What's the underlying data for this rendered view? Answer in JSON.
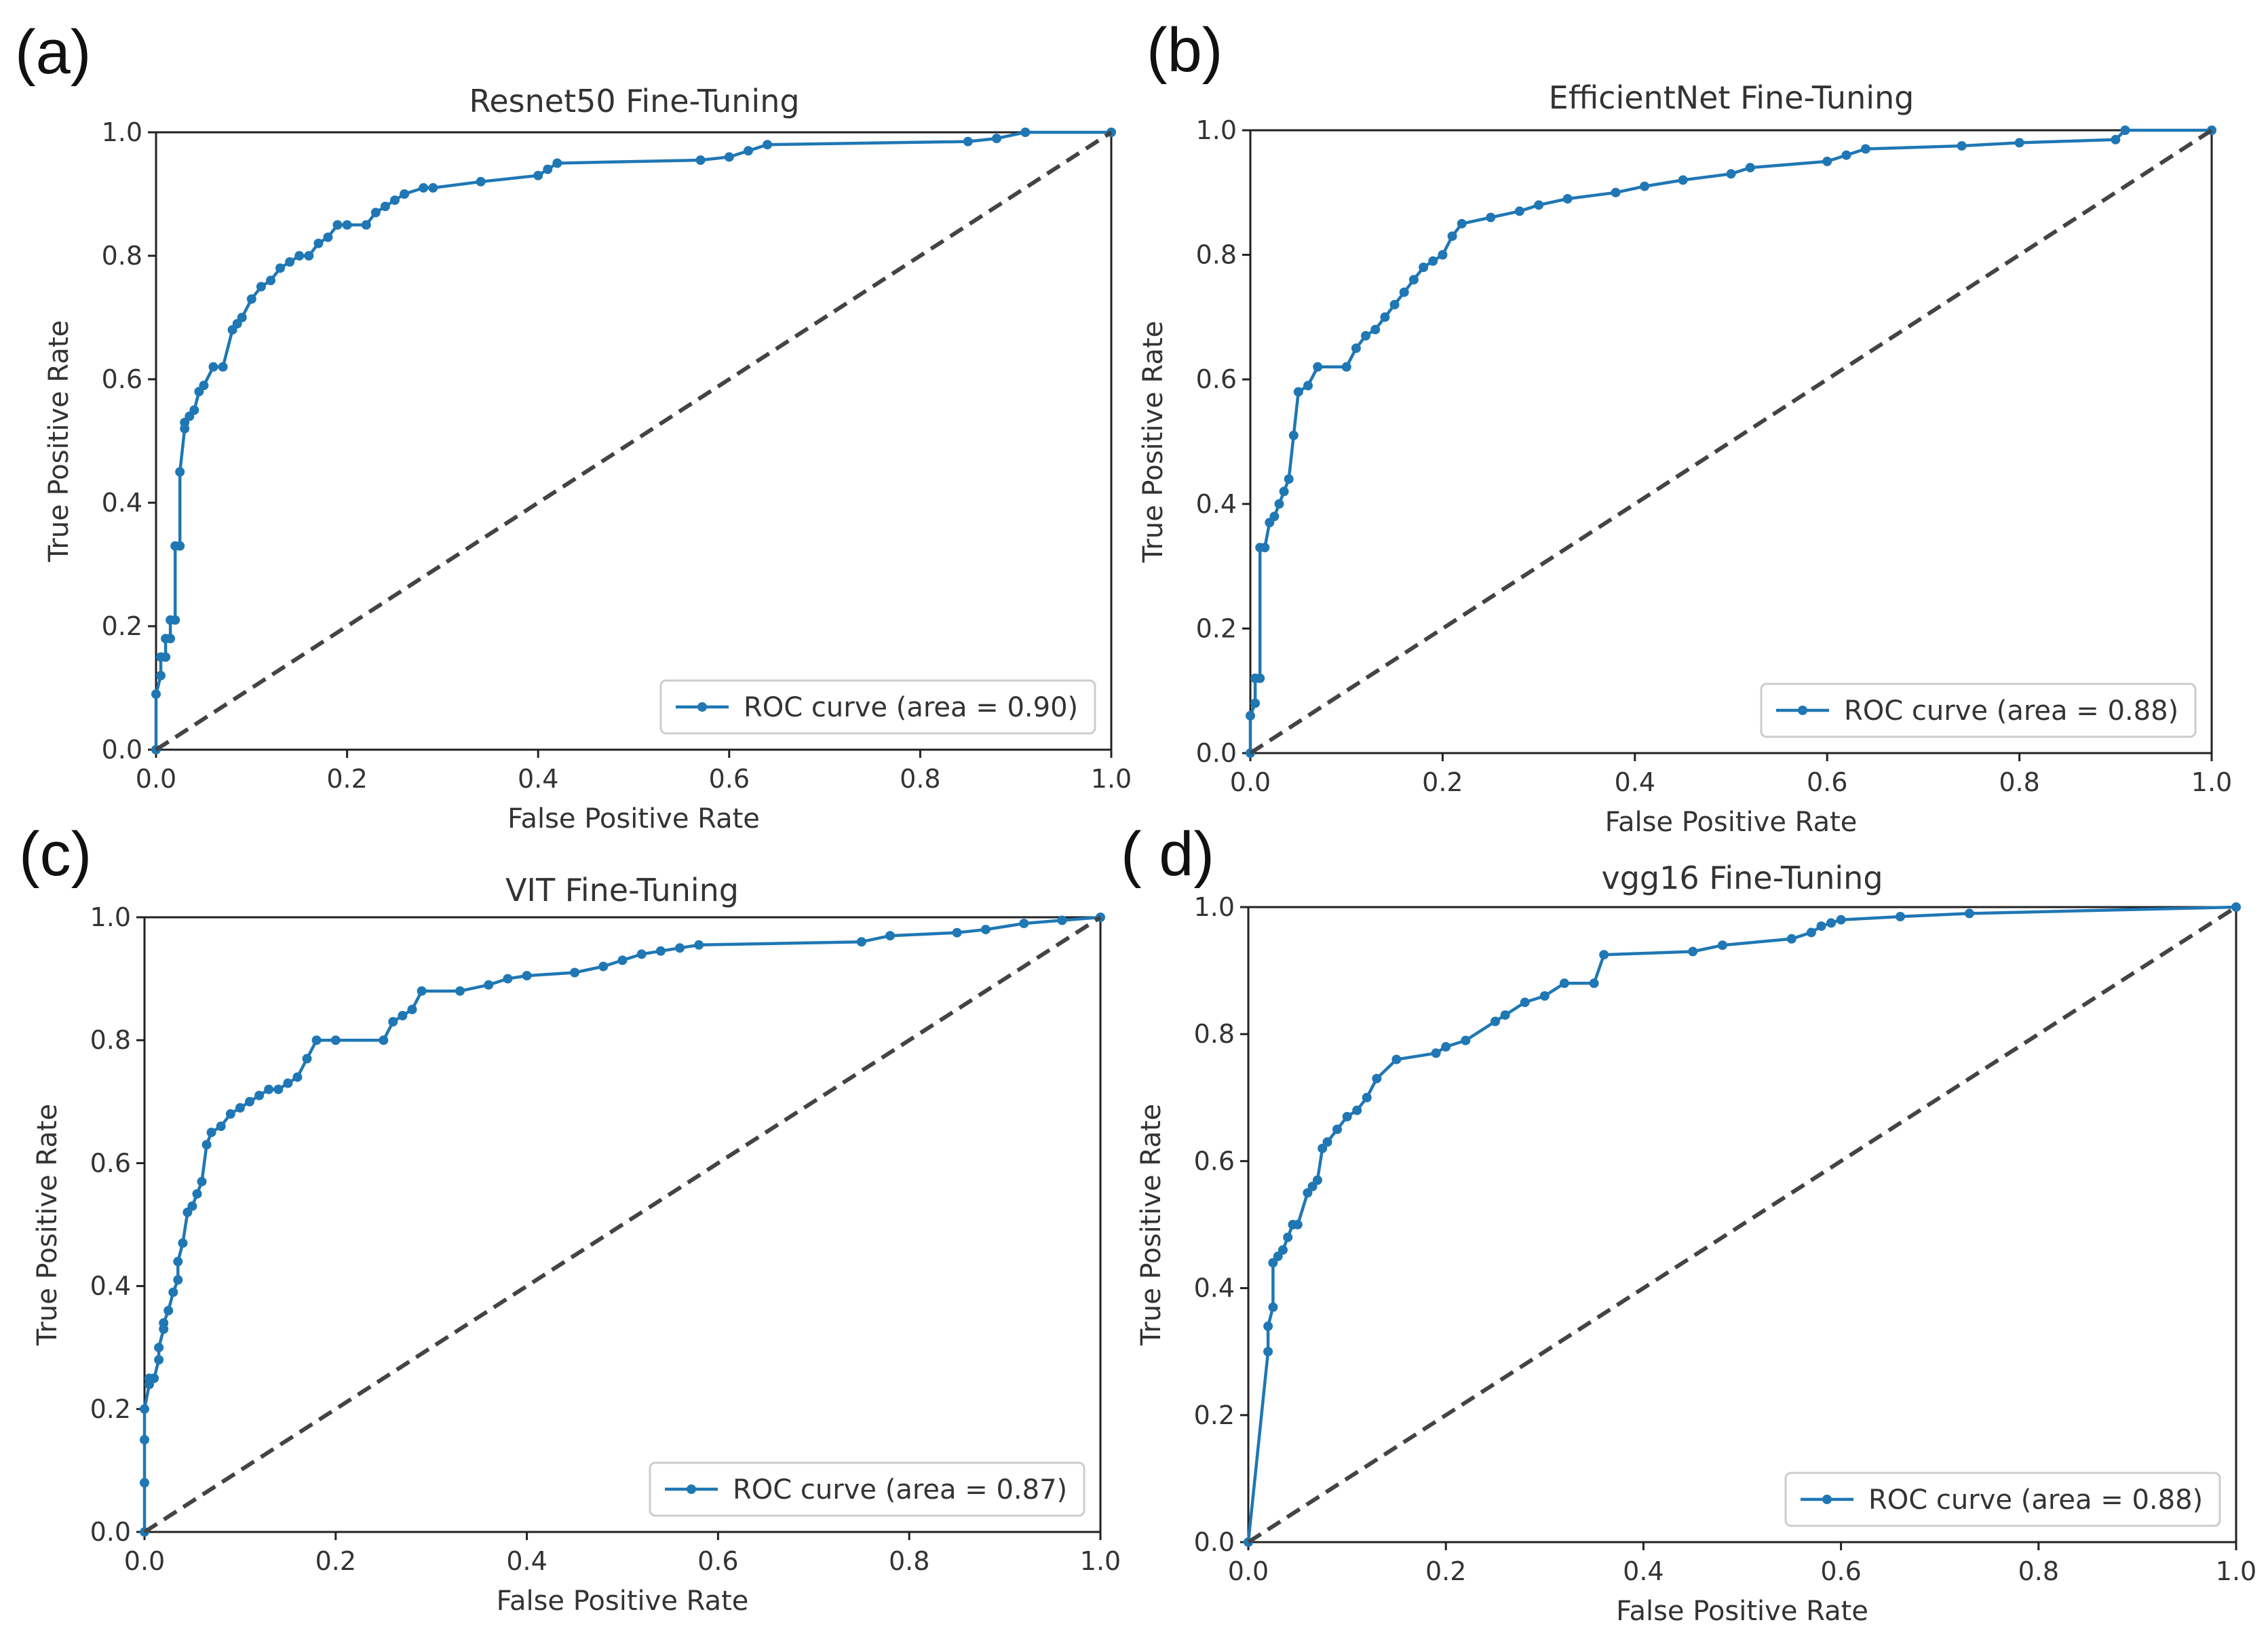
{
  "chart_data": [
    {
      "type": "line",
      "panel_label": "(a)",
      "title": "Resnet50 Fine-Tuning",
      "xlabel": "False Positive Rate",
      "ylabel": "True Positive Rate",
      "xlim": [
        0.0,
        1.0
      ],
      "ylim": [
        0.0,
        1.0
      ],
      "xticks": [
        "0.0",
        "0.2",
        "0.4",
        "0.6",
        "0.8",
        "1.0"
      ],
      "yticks": [
        "0.0",
        "0.2",
        "0.4",
        "0.6",
        "0.8",
        "1.0"
      ],
      "legend_position": "lower-right",
      "grid": false,
      "series": [
        {
          "name": "ROC curve (area = 0.90)",
          "color": "#1f77b4",
          "marker": "dot",
          "x": [
            0,
            0,
            0.005,
            0.005,
            0.01,
            0.01,
            0.015,
            0.015,
            0.02,
            0.02,
            0.025,
            0.025,
            0.03,
            0.03,
            0.035,
            0.04,
            0.045,
            0.05,
            0.06,
            0.07,
            0.08,
            0.085,
            0.09,
            0.1,
            0.11,
            0.12,
            0.13,
            0.14,
            0.15,
            0.16,
            0.17,
            0.18,
            0.19,
            0.2,
            0.22,
            0.23,
            0.24,
            0.25,
            0.26,
            0.28,
            0.29,
            0.34,
            0.4,
            0.41,
            0.42,
            0.57,
            0.6,
            0.62,
            0.64,
            0.85,
            0.88,
            0.91,
            1.0
          ],
          "y": [
            0,
            0.09,
            0.12,
            0.15,
            0.15,
            0.18,
            0.18,
            0.21,
            0.21,
            0.33,
            0.33,
            0.45,
            0.52,
            0.53,
            0.54,
            0.55,
            0.58,
            0.59,
            0.62,
            0.62,
            0.68,
            0.69,
            0.7,
            0.73,
            0.75,
            0.76,
            0.78,
            0.79,
            0.8,
            0.8,
            0.82,
            0.83,
            0.85,
            0.85,
            0.85,
            0.87,
            0.88,
            0.89,
            0.9,
            0.91,
            0.91,
            0.92,
            0.93,
            0.94,
            0.95,
            0.955,
            0.96,
            0.97,
            0.98,
            0.985,
            0.99,
            1.0,
            1.0
          ]
        },
        {
          "name": "chance",
          "color": "#444444",
          "style": "dashed",
          "x": [
            0,
            1
          ],
          "y": [
            0,
            1
          ]
        }
      ],
      "legend_entry": "ROC curve (area = 0.90)"
    },
    {
      "type": "line",
      "panel_label": "(b)",
      "title": "EfficientNet Fine-Tuning",
      "xlabel": "False Positive Rate",
      "ylabel": "True Positive Rate",
      "xlim": [
        0.0,
        1.0
      ],
      "ylim": [
        0.0,
        1.0
      ],
      "xticks": [
        "0.0",
        "0.2",
        "0.4",
        "0.6",
        "0.8",
        "1.0"
      ],
      "yticks": [
        "0.0",
        "0.2",
        "0.4",
        "0.6",
        "0.8",
        "1.0"
      ],
      "legend_position": "lower-right",
      "grid": false,
      "series": [
        {
          "name": "ROC curve (area = 0.88)",
          "color": "#1f77b4",
          "marker": "dot",
          "x": [
            0,
            0,
            0.005,
            0.005,
            0.01,
            0.01,
            0.015,
            0.02,
            0.025,
            0.03,
            0.035,
            0.04,
            0.045,
            0.05,
            0.06,
            0.07,
            0.1,
            0.11,
            0.12,
            0.13,
            0.14,
            0.15,
            0.16,
            0.17,
            0.18,
            0.19,
            0.2,
            0.21,
            0.22,
            0.25,
            0.28,
            0.3,
            0.33,
            0.38,
            0.41,
            0.45,
            0.5,
            0.52,
            0.6,
            0.62,
            0.64,
            0.74,
            0.8,
            0.9,
            0.91,
            1.0
          ],
          "y": [
            0,
            0.06,
            0.08,
            0.12,
            0.12,
            0.33,
            0.33,
            0.37,
            0.38,
            0.4,
            0.42,
            0.44,
            0.51,
            0.58,
            0.59,
            0.62,
            0.62,
            0.65,
            0.67,
            0.68,
            0.7,
            0.72,
            0.74,
            0.76,
            0.78,
            0.79,
            0.8,
            0.83,
            0.85,
            0.86,
            0.87,
            0.88,
            0.89,
            0.9,
            0.91,
            0.92,
            0.93,
            0.94,
            0.95,
            0.96,
            0.97,
            0.975,
            0.98,
            0.985,
            1.0,
            1.0
          ]
        },
        {
          "name": "chance",
          "color": "#444444",
          "style": "dashed",
          "x": [
            0,
            1
          ],
          "y": [
            0,
            1
          ]
        }
      ],
      "legend_entry": "ROC curve (area = 0.88)"
    },
    {
      "type": "line",
      "panel_label": "(c)",
      "title": "VIT Fine-Tuning",
      "xlabel": "False Positive Rate",
      "ylabel": "True Positive Rate",
      "xlim": [
        0.0,
        1.0
      ],
      "ylim": [
        0.0,
        1.0
      ],
      "xticks": [
        "0.0",
        "0.2",
        "0.4",
        "0.6",
        "0.8",
        "1.0"
      ],
      "yticks": [
        "0.0",
        "0.2",
        "0.4",
        "0.6",
        "0.8",
        "1.0"
      ],
      "legend_position": "lower-right",
      "grid": false,
      "series": [
        {
          "name": "ROC curve (area = 0.87)",
          "color": "#1f77b4",
          "marker": "dot",
          "x": [
            0,
            0,
            0,
            0,
            0.005,
            0.005,
            0.01,
            0.015,
            0.015,
            0.02,
            0.02,
            0.025,
            0.03,
            0.035,
            0.035,
            0.04,
            0.045,
            0.05,
            0.055,
            0.06,
            0.065,
            0.07,
            0.08,
            0.09,
            0.1,
            0.11,
            0.12,
            0.13,
            0.14,
            0.15,
            0.16,
            0.17,
            0.18,
            0.2,
            0.25,
            0.26,
            0.27,
            0.28,
            0.29,
            0.33,
            0.36,
            0.38,
            0.4,
            0.45,
            0.48,
            0.5,
            0.52,
            0.54,
            0.56,
            0.58,
            0.75,
            0.78,
            0.85,
            0.88,
            0.92,
            0.96,
            1.0
          ],
          "y": [
            0,
            0.08,
            0.15,
            0.2,
            0.24,
            0.25,
            0.25,
            0.28,
            0.3,
            0.33,
            0.34,
            0.36,
            0.39,
            0.41,
            0.44,
            0.47,
            0.52,
            0.53,
            0.55,
            0.57,
            0.63,
            0.65,
            0.66,
            0.68,
            0.69,
            0.7,
            0.71,
            0.72,
            0.72,
            0.73,
            0.74,
            0.77,
            0.8,
            0.8,
            0.8,
            0.83,
            0.84,
            0.85,
            0.88,
            0.88,
            0.89,
            0.9,
            0.905,
            0.91,
            0.92,
            0.93,
            0.94,
            0.945,
            0.95,
            0.955,
            0.96,
            0.97,
            0.975,
            0.98,
            0.99,
            0.995,
            1.0
          ]
        },
        {
          "name": "chance",
          "color": "#444444",
          "style": "dashed",
          "x": [
            0,
            1
          ],
          "y": [
            0,
            1
          ]
        }
      ],
      "legend_entry": "ROC curve (area = 0.87)"
    },
    {
      "type": "line",
      "panel_label": "( d)",
      "title": "vgg16 Fine-Tuning",
      "xlabel": "False Positive Rate",
      "ylabel": "True Positive Rate",
      "xlim": [
        0.0,
        1.0
      ],
      "ylim": [
        0.0,
        1.0
      ],
      "xticks": [
        "0.0",
        "0.2",
        "0.4",
        "0.6",
        "0.8",
        "1.0"
      ],
      "yticks": [
        "0.0",
        "0.2",
        "0.4",
        "0.6",
        "0.8",
        "1.0"
      ],
      "legend_position": "lower-right",
      "grid": false,
      "series": [
        {
          "name": "ROC curve (area = 0.88)",
          "color": "#1f77b4",
          "marker": "dot",
          "x": [
            0,
            0.02,
            0.02,
            0.025,
            0.025,
            0.03,
            0.035,
            0.04,
            0.045,
            0.05,
            0.06,
            0.065,
            0.07,
            0.075,
            0.08,
            0.09,
            0.1,
            0.11,
            0.12,
            0.13,
            0.15,
            0.19,
            0.2,
            0.22,
            0.25,
            0.26,
            0.28,
            0.3,
            0.32,
            0.35,
            0.36,
            0.45,
            0.48,
            0.55,
            0.57,
            0.58,
            0.59,
            0.6,
            0.66,
            0.73,
            1.0
          ],
          "y": [
            0,
            0.3,
            0.34,
            0.37,
            0.44,
            0.45,
            0.46,
            0.48,
            0.5,
            0.5,
            0.55,
            0.56,
            0.57,
            0.62,
            0.63,
            0.65,
            0.67,
            0.68,
            0.7,
            0.73,
            0.76,
            0.77,
            0.78,
            0.79,
            0.82,
            0.83,
            0.85,
            0.86,
            0.88,
            0.88,
            0.925,
            0.93,
            0.94,
            0.95,
            0.96,
            0.97,
            0.975,
            0.98,
            0.985,
            0.99,
            1.0
          ]
        },
        {
          "name": "chance",
          "color": "#444444",
          "style": "dashed",
          "x": [
            0,
            1
          ],
          "y": [
            0,
            1
          ]
        }
      ],
      "legend_entry": "ROC curve (area = 0.88)"
    }
  ]
}
